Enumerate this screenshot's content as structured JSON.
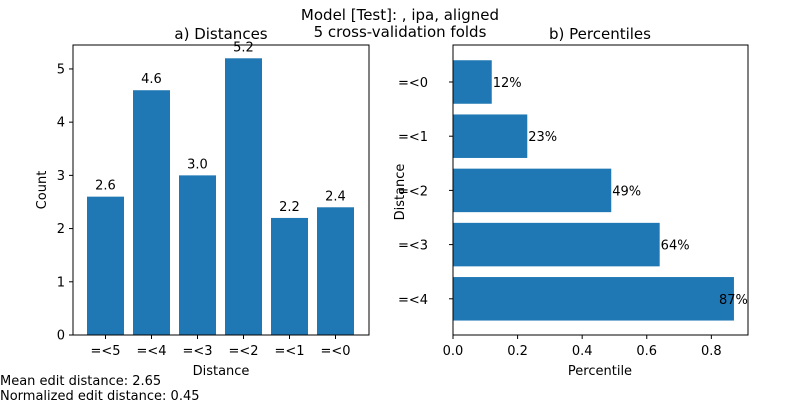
{
  "figure": {
    "suptitle_line1": "Model [Test]:  , ipa, aligned",
    "suptitle_line2": "5 cross-validation folds",
    "footer_mean": "Mean edit distance: 2.65",
    "footer_normalized": "Normalized edit distance: 0.45"
  },
  "chart_data": [
    {
      "type": "bar",
      "title": "a) Distances",
      "xlabel": "Distance",
      "ylabel": "Count",
      "categories": [
        "=<5",
        "=<4",
        "=<3",
        "=<2",
        "=<1",
        "=<0"
      ],
      "values": [
        2.6,
        4.6,
        3.0,
        5.2,
        2.2,
        2.4
      ],
      "value_labels": [
        "2.6",
        "4.6",
        "3.0",
        "5.2",
        "2.2",
        "2.4"
      ],
      "ylim": [
        0,
        5.45
      ],
      "yticks": [
        0,
        1,
        2,
        3,
        4,
        5
      ],
      "ytick_labels": [
        "0",
        "1",
        "2",
        "3",
        "4",
        "5"
      ],
      "color": "#1f77b4",
      "grid": false
    },
    {
      "type": "bar",
      "orientation": "horizontal",
      "title": "b) Percentiles",
      "xlabel": "Percentile",
      "ylabel": "Distance",
      "categories": [
        "=<0",
        "=<1",
        "=<2",
        "=<3",
        "=<4"
      ],
      "values": [
        0.12,
        0.23,
        0.49,
        0.64,
        0.87
      ],
      "value_labels": [
        "12%",
        "23%",
        "49%",
        "64%",
        "87%"
      ],
      "xlim": [
        0,
        0.9135
      ],
      "xticks": [
        0.0,
        0.2,
        0.4,
        0.6,
        0.8
      ],
      "xtick_labels": [
        "0.0",
        "0.2",
        "0.4",
        "0.6",
        "0.8"
      ],
      "color": "#1f77b4",
      "grid": false
    }
  ]
}
